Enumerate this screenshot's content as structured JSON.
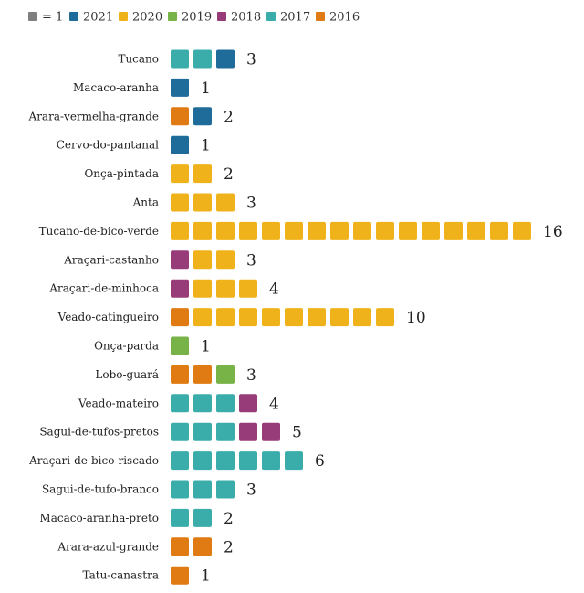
{
  "chart_data": {
    "type": "bar",
    "subtype": "unit-pictogram",
    "legend": {
      "placement": "top-left",
      "unit": {
        "label": "= 1",
        "color": "#7f7f7f"
      },
      "entries": [
        {
          "year": "2021",
          "color": "#1f6b9a"
        },
        {
          "year": "2020",
          "color": "#f0b21a"
        },
        {
          "year": "2019",
          "color": "#78b347"
        },
        {
          "year": "2018",
          "color": "#973c78"
        },
        {
          "year": "2017",
          "color": "#3aadab"
        },
        {
          "year": "2016",
          "color": "#e07a12"
        }
      ]
    },
    "categories": [
      "Tucano",
      "Macaco-aranha",
      "Arara-vermelha-grande",
      "Cervo-do-pantanal",
      "Onça-pintada",
      "Anta",
      "Tucano-de-bico-verde",
      "Araçari-castanho",
      "Araçari-de-minhoca",
      "Veado-catingueiro",
      "Onça-parda",
      "Lobo-guará",
      "Veado-mateiro",
      "Sagui-de-tufos-pretos",
      "Araçari-de-bico-riscado",
      "Sagui-de-tufo-branco",
      "Macaco-aranha-preto",
      "Arara-azul-grande",
      "Tatu-canastra"
    ],
    "totals": [
      3,
      1,
      2,
      1,
      2,
      3,
      16,
      3,
      4,
      10,
      1,
      3,
      4,
      5,
      6,
      3,
      2,
      2,
      1
    ],
    "units_by_year": [
      [
        "2017",
        "2017",
        "2021"
      ],
      [
        "2021"
      ],
      [
        "2016",
        "2021"
      ],
      [
        "2021"
      ],
      [
        "2020",
        "2020"
      ],
      [
        "2020",
        "2020",
        "2020"
      ],
      [
        "2020",
        "2020",
        "2020",
        "2020",
        "2020",
        "2020",
        "2020",
        "2020",
        "2020",
        "2020",
        "2020",
        "2020",
        "2020",
        "2020",
        "2020",
        "2020"
      ],
      [
        "2018",
        "2020",
        "2020"
      ],
      [
        "2018",
        "2020",
        "2020",
        "2020"
      ],
      [
        "2016",
        "2020",
        "2020",
        "2020",
        "2020",
        "2020",
        "2020",
        "2020",
        "2020",
        "2020"
      ],
      [
        "2019"
      ],
      [
        "2016",
        "2016",
        "2019"
      ],
      [
        "2017",
        "2017",
        "2017",
        "2018"
      ],
      [
        "2017",
        "2017",
        "2017",
        "2018",
        "2018"
      ],
      [
        "2017",
        "2017",
        "2017",
        "2017",
        "2017",
        "2017"
      ],
      [
        "2017",
        "2017",
        "2017"
      ],
      [
        "2017",
        "2017"
      ],
      [
        "2016",
        "2016"
      ],
      [
        "2016"
      ]
    ],
    "title": "",
    "xlabel": "",
    "ylabel": ""
  }
}
